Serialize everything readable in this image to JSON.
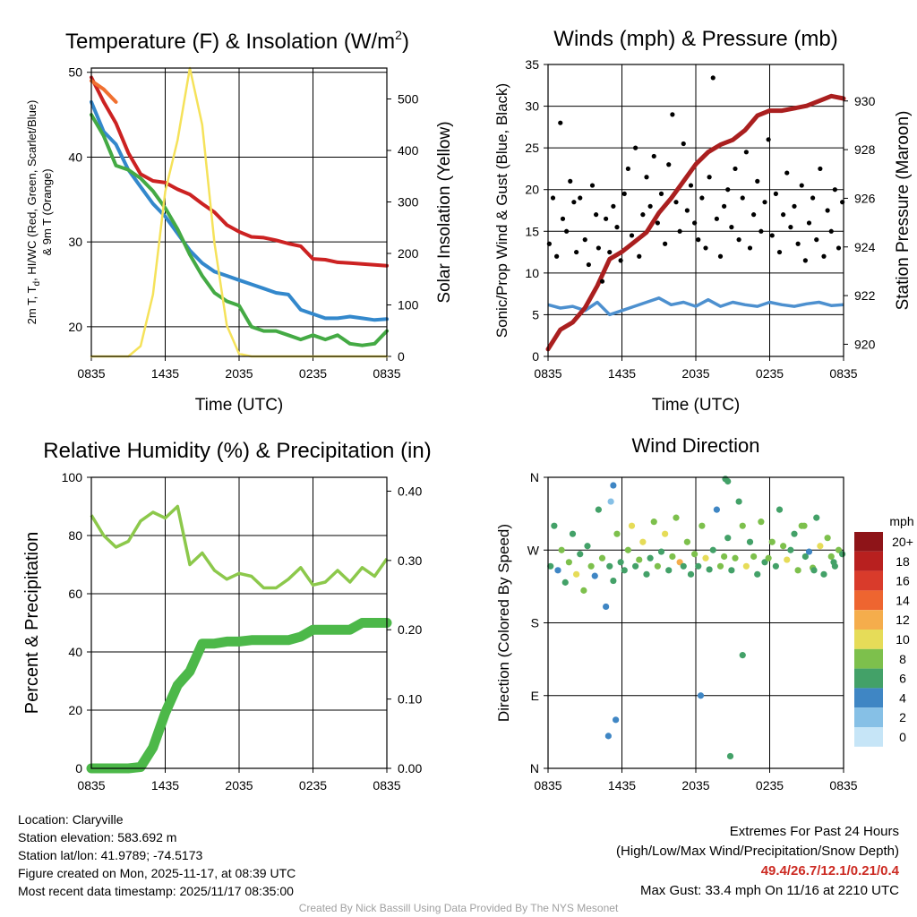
{
  "chart_data": [
    {
      "type": "line",
      "title": "Temperature (F) & Insolation (W/m",
      "title_sup": "2",
      "title_end": ")",
      "xlabel": "Time (UTC)",
      "ylabel_line1": "2m T, T",
      "ylabel_sub": "d",
      "ylabel_line1_end": ", HI/WC (Red, Green, Scarlet/Blue)",
      "ylabel_line2": "& 9m T (Orange)",
      "ylabel_right": "Solar Insolation (Yellow)",
      "x_ticks": [
        "0835",
        "1435",
        "2035",
        "0235",
        "0835"
      ],
      "y_ticks": [
        20,
        30,
        40,
        50
      ],
      "ylim": [
        16.5,
        50.5
      ],
      "y_right_ticks": [
        0,
        100,
        200,
        300,
        400,
        500
      ],
      "ylim_right": [
        0,
        560
      ],
      "x_hours": [
        0,
        1,
        2,
        3,
        4,
        5,
        6,
        7,
        8,
        9,
        10,
        11,
        12,
        13,
        14,
        15,
        16,
        17,
        18,
        19,
        20,
        21,
        22,
        23,
        24
      ],
      "series": [
        {
          "name": "2m T",
          "color": "#cc2222",
          "values": [
            49.4,
            46.5,
            44.0,
            40.5,
            38.0,
            37.2,
            37.0,
            36.2,
            35.6,
            34.5,
            33.5,
            32.0,
            31.2,
            30.6,
            30.5,
            30.2,
            29.8,
            29.5,
            28.0,
            27.9,
            27.6,
            27.5,
            27.4,
            27.3,
            27.2
          ]
        },
        {
          "name": "HI/WC",
          "color": "#3388cc",
          "values": [
            46.5,
            43.0,
            41.5,
            38.5,
            36.5,
            34.5,
            33.0,
            31.0,
            29.0,
            27.5,
            26.5,
            26.0,
            25.5,
            25.0,
            24.5,
            24.0,
            23.8,
            22.0,
            21.5,
            21.0,
            21.0,
            21.2,
            21.0,
            20.8,
            20.9
          ]
        },
        {
          "name": "Td",
          "color": "#44aa44",
          "values": [
            45.0,
            42.5,
            39.0,
            38.5,
            37.5,
            36.0,
            34.0,
            31.5,
            28.5,
            26.0,
            24.0,
            23.0,
            22.5,
            20.0,
            19.5,
            19.5,
            19.0,
            18.5,
            19.0,
            18.5,
            19.0,
            18.0,
            17.8,
            18.0,
            19.5
          ]
        },
        {
          "name": "9m T",
          "color": "#f07030",
          "values": [
            49.0,
            48.0,
            46.5
          ]
        },
        {
          "name": "Solar Insolation",
          "color": "#f5e25a",
          "axis": "right",
          "values": [
            0,
            0,
            0,
            0,
            20,
            120,
            320,
            420,
            560,
            450,
            220,
            60,
            5,
            0,
            0,
            0,
            0,
            0,
            0,
            0,
            0,
            0,
            0,
            0,
            0
          ]
        }
      ]
    },
    {
      "type": "line",
      "title": "Winds (mph) & Pressure (mb)",
      "xlabel": "Time (UTC)",
      "ylabel": "Sonic/Prop Wind & Gust (Blue, Black)",
      "ylabel_right": "Station Pressure (Maroon)",
      "x_ticks": [
        "0835",
        "1435",
        "2035",
        "0235",
        "0835"
      ],
      "y_ticks": [
        0,
        5,
        10,
        15,
        20,
        25,
        30,
        35
      ],
      "ylim": [
        0,
        35
      ],
      "y_right_ticks": [
        920,
        922,
        924,
        926,
        928,
        930
      ],
      "ylim_right": [
        919.5,
        931.5
      ],
      "x_hours": [
        0,
        1,
        2,
        3,
        4,
        5,
        6,
        7,
        8,
        9,
        10,
        11,
        12,
        13,
        14,
        15,
        16,
        17,
        18,
        19,
        20,
        21,
        22,
        23,
        24
      ],
      "series": [
        {
          "name": "Sonic/Prop Wind",
          "color": "#4d90cf",
          "values": [
            6.2,
            5.8,
            6.0,
            5.5,
            6.5,
            5.0,
            5.5,
            6.0,
            6.5,
            7.0,
            6.2,
            6.5,
            6.0,
            6.8,
            6.0,
            6.5,
            6.2,
            6.0,
            6.5,
            6.2,
            6.0,
            6.3,
            6.5,
            6.1,
            6.2
          ]
        },
        {
          "name": "Station Pressure",
          "color": "#aa1f1f",
          "axis": "right",
          "values": [
            919.8,
            920.6,
            920.9,
            921.5,
            922.4,
            923.5,
            923.8,
            924.2,
            924.6,
            925.4,
            926.0,
            926.7,
            927.4,
            927.9,
            928.2,
            928.4,
            928.8,
            929.4,
            929.6,
            929.6,
            929.7,
            929.8,
            930.0,
            930.2,
            930.1
          ]
        },
        {
          "name": "Gust",
          "color": "#000000",
          "hours": [
            0.1,
            0.4,
            0.7,
            1.0,
            1.2,
            1.5,
            1.8,
            2.1,
            2.3,
            2.6,
            3.0,
            3.3,
            3.6,
            3.9,
            4.1,
            4.4,
            4.7,
            5.0,
            5.3,
            5.6,
            5.9,
            6.2,
            6.5,
            6.8,
            7.1,
            7.4,
            7.7,
            8.0,
            8.3,
            8.6,
            8.9,
            9.2,
            9.5,
            9.8,
            10.1,
            10.4,
            10.7,
            11.0,
            11.3,
            11.6,
            11.9,
            12.2,
            12.5,
            12.8,
            13.1,
            13.4,
            13.7,
            14.0,
            14.3,
            14.6,
            14.9,
            15.2,
            15.5,
            15.8,
            16.1,
            16.4,
            16.7,
            17.0,
            17.3,
            17.6,
            17.9,
            18.2,
            18.5,
            18.8,
            19.1,
            19.4,
            19.7,
            20.0,
            20.3,
            20.6,
            20.9,
            21.2,
            21.5,
            21.8,
            22.1,
            22.4,
            22.7,
            23.0,
            23.3,
            23.6,
            23.9
          ],
          "values": [
            13.5,
            19.0,
            12.0,
            28.0,
            16.5,
            15.0,
            21.0,
            18.5,
            12.5,
            19.0,
            14.0,
            11.0,
            20.5,
            17.0,
            13.0,
            9.0,
            16.5,
            12.5,
            18.0,
            15.5,
            11.5,
            19.5,
            22.5,
            14.5,
            25.0,
            12.0,
            17.0,
            21.5,
            18.0,
            24.0,
            16.0,
            19.5,
            13.5,
            23.0,
            29.0,
            18.5,
            15.0,
            25.5,
            17.5,
            20.5,
            16.0,
            14.0,
            19.0,
            13.0,
            21.5,
            33.4,
            16.5,
            12.0,
            18.0,
            20.0,
            15.5,
            22.5,
            14.0,
            19.0,
            24.5,
            13.0,
            17.0,
            21.0,
            15.0,
            18.5,
            26.0,
            14.5,
            19.5,
            12.5,
            17.0,
            22.0,
            15.5,
            18.0,
            13.5,
            20.5,
            11.5,
            16.0,
            19.0,
            14.0,
            22.5,
            12.0,
            17.5,
            15.0,
            20.0,
            13.0,
            18.5
          ]
        }
      ]
    },
    {
      "type": "line",
      "title": "Relative Humidity (%) & Precipitation (in)",
      "xlabel": "",
      "ylabel": "Percent & Precipitation",
      "x_ticks": [
        "0835",
        "1435",
        "2035",
        "0235",
        "0835"
      ],
      "y_ticks": [
        0,
        20,
        40,
        60,
        80,
        100
      ],
      "ylim": [
        0,
        100
      ],
      "y_right_ticks": [
        "0.00",
        "0.10",
        "0.20",
        "0.30",
        "0.40"
      ],
      "ylim_right": [
        0,
        0.42
      ],
      "x_hours": [
        0,
        1,
        2,
        3,
        4,
        5,
        6,
        7,
        8,
        9,
        10,
        11,
        12,
        13,
        14,
        15,
        16,
        17,
        18,
        19,
        20,
        21,
        22,
        23,
        24
      ],
      "series": [
        {
          "name": "Relative Humidity",
          "color": "#8cc84b",
          "values": [
            87,
            80,
            76,
            78,
            85,
            88,
            86,
            90,
            70,
            74,
            68,
            65,
            67,
            66,
            62,
            62,
            65,
            69,
            63,
            64,
            68,
            64,
            69,
            66,
            72
          ]
        },
        {
          "name": "Precipitation",
          "color": "#4cb849",
          "axis": "right",
          "values": [
            0.0,
            0.0,
            0.0,
            0.0,
            0.002,
            0.03,
            0.08,
            0.12,
            0.14,
            0.18,
            0.18,
            0.183,
            0.183,
            0.185,
            0.185,
            0.185,
            0.185,
            0.19,
            0.2,
            0.2,
            0.2,
            0.2,
            0.21,
            0.21,
            0.21
          ]
        }
      ]
    },
    {
      "type": "scatter",
      "title": "Wind Direction",
      "ylabel": "Direction (Colored By Speed)",
      "x_ticks": [
        "0835",
        "1435",
        "2035",
        "0235",
        "0835"
      ],
      "y_ticks": [
        "N",
        "E",
        "S",
        "W",
        "N"
      ],
      "ylim": [
        0,
        360
      ],
      "colorbar_title": "mph",
      "colorbar_labels": [
        "0",
        "2",
        "4",
        "6",
        "8",
        "10",
        "12",
        "14",
        "16",
        "18",
        "20+"
      ],
      "colorbar_colors": [
        "#c6e5f7",
        "#86c0e6",
        "#3f86c4",
        "#43a168",
        "#7dc04c",
        "#e6dc58",
        "#f5ad4c",
        "#ee6530",
        "#d93b2b",
        "#b8201f",
        "#8e1418"
      ],
      "points_hours": [
        0.2,
        0.5,
        0.8,
        1.1,
        1.4,
        1.7,
        2.0,
        2.3,
        2.6,
        2.9,
        3.2,
        3.5,
        3.8,
        4.1,
        4.4,
        4.7,
        5.0,
        5.3,
        5.6,
        5.9,
        6.2,
        6.5,
        6.8,
        7.1,
        7.4,
        7.7,
        8.0,
        8.3,
        8.6,
        8.9,
        9.2,
        9.5,
        9.8,
        10.1,
        10.4,
        10.7,
        11.0,
        11.3,
        11.6,
        11.9,
        12.2,
        12.5,
        12.8,
        13.1,
        13.4,
        13.7,
        14.0,
        14.3,
        14.6,
        14.9,
        15.2,
        15.5,
        15.8,
        16.1,
        16.4,
        16.7,
        17.0,
        17.3,
        17.6,
        17.9,
        18.2,
        18.5,
        18.8,
        19.1,
        19.4,
        19.7,
        20.0,
        20.3,
        20.6,
        20.9,
        21.2,
        21.5,
        21.8,
        22.1,
        22.4,
        22.7,
        23.0,
        23.3,
        23.6,
        23.9,
        5.3,
        5.1,
        5.5,
        4.9,
        14.6,
        14.4,
        14.8,
        12.4,
        15.8,
        20.8,
        21.6,
        23.2
      ],
      "points_dir": [
        250,
        300,
        245,
        270,
        230,
        255,
        290,
        240,
        265,
        220,
        275,
        250,
        238,
        320,
        260,
        200,
        250,
        232,
        290,
        255,
        245,
        270,
        300,
        250,
        258,
        280,
        240,
        260,
        305,
        250,
        268,
        290,
        245,
        262,
        310,
        255,
        250,
        280,
        240,
        265,
        250,
        300,
        260,
        246,
        270,
        320,
        250,
        262,
        285,
        245,
        260,
        330,
        300,
        250,
        280,
        262,
        240,
        305,
        255,
        260,
        280,
        250,
        320,
        275,
        258,
        270,
        290,
        245,
        300,
        262,
        268,
        248,
        310,
        275,
        240,
        285,
        262,
        250,
        270,
        265,
        350,
        330,
        60,
        40,
        355,
        358,
        15,
        90,
        140,
        300,
        245,
        255
      ],
      "points_speed": [
        5,
        6,
        4,
        7,
        5,
        8,
        6,
        9,
        5,
        7,
        6,
        8,
        4,
        6,
        7,
        3,
        6,
        5,
        7,
        6,
        5,
        8,
        9,
        6,
        7,
        10,
        5,
        6,
        8,
        7,
        6,
        9,
        5,
        7,
        8,
        11,
        6,
        7,
        5,
        8,
        6,
        7,
        9,
        5,
        6,
        4,
        7,
        8,
        6,
        5,
        7,
        6,
        8,
        9,
        6,
        7,
        5,
        8,
        6,
        7,
        8,
        5,
        6,
        7,
        9,
        6,
        5,
        7,
        8,
        6,
        4,
        7,
        6,
        9,
        5,
        7,
        8,
        6,
        7,
        5,
        3,
        2,
        4,
        4,
        6,
        5,
        6,
        4,
        6,
        7,
        5,
        6
      ]
    }
  ],
  "info": {
    "location": "Location: Claryville",
    "elevation": "Station elevation: 583.692 m",
    "latlon": "Station lat/lon: 41.9789; -74.5173",
    "created": "Figure created on Mon, 2025-11-17, at 08:39 UTC",
    "recent": "Most recent data timestamp: 2025/11/17 08:35:00"
  },
  "extremes": {
    "title": "Extremes For Past 24 Hours",
    "subtitle": "(High/Low/Max Wind/Precipitation/Snow Depth)",
    "values": "49.4/26.7/12.1/0.21/0.4",
    "max_gust": "Max Gust: 33.4 mph On 11/16 at 2210 UTC"
  },
  "credit": "Created By Nick Bassill Using Data Provided By The NYS Mesonet"
}
